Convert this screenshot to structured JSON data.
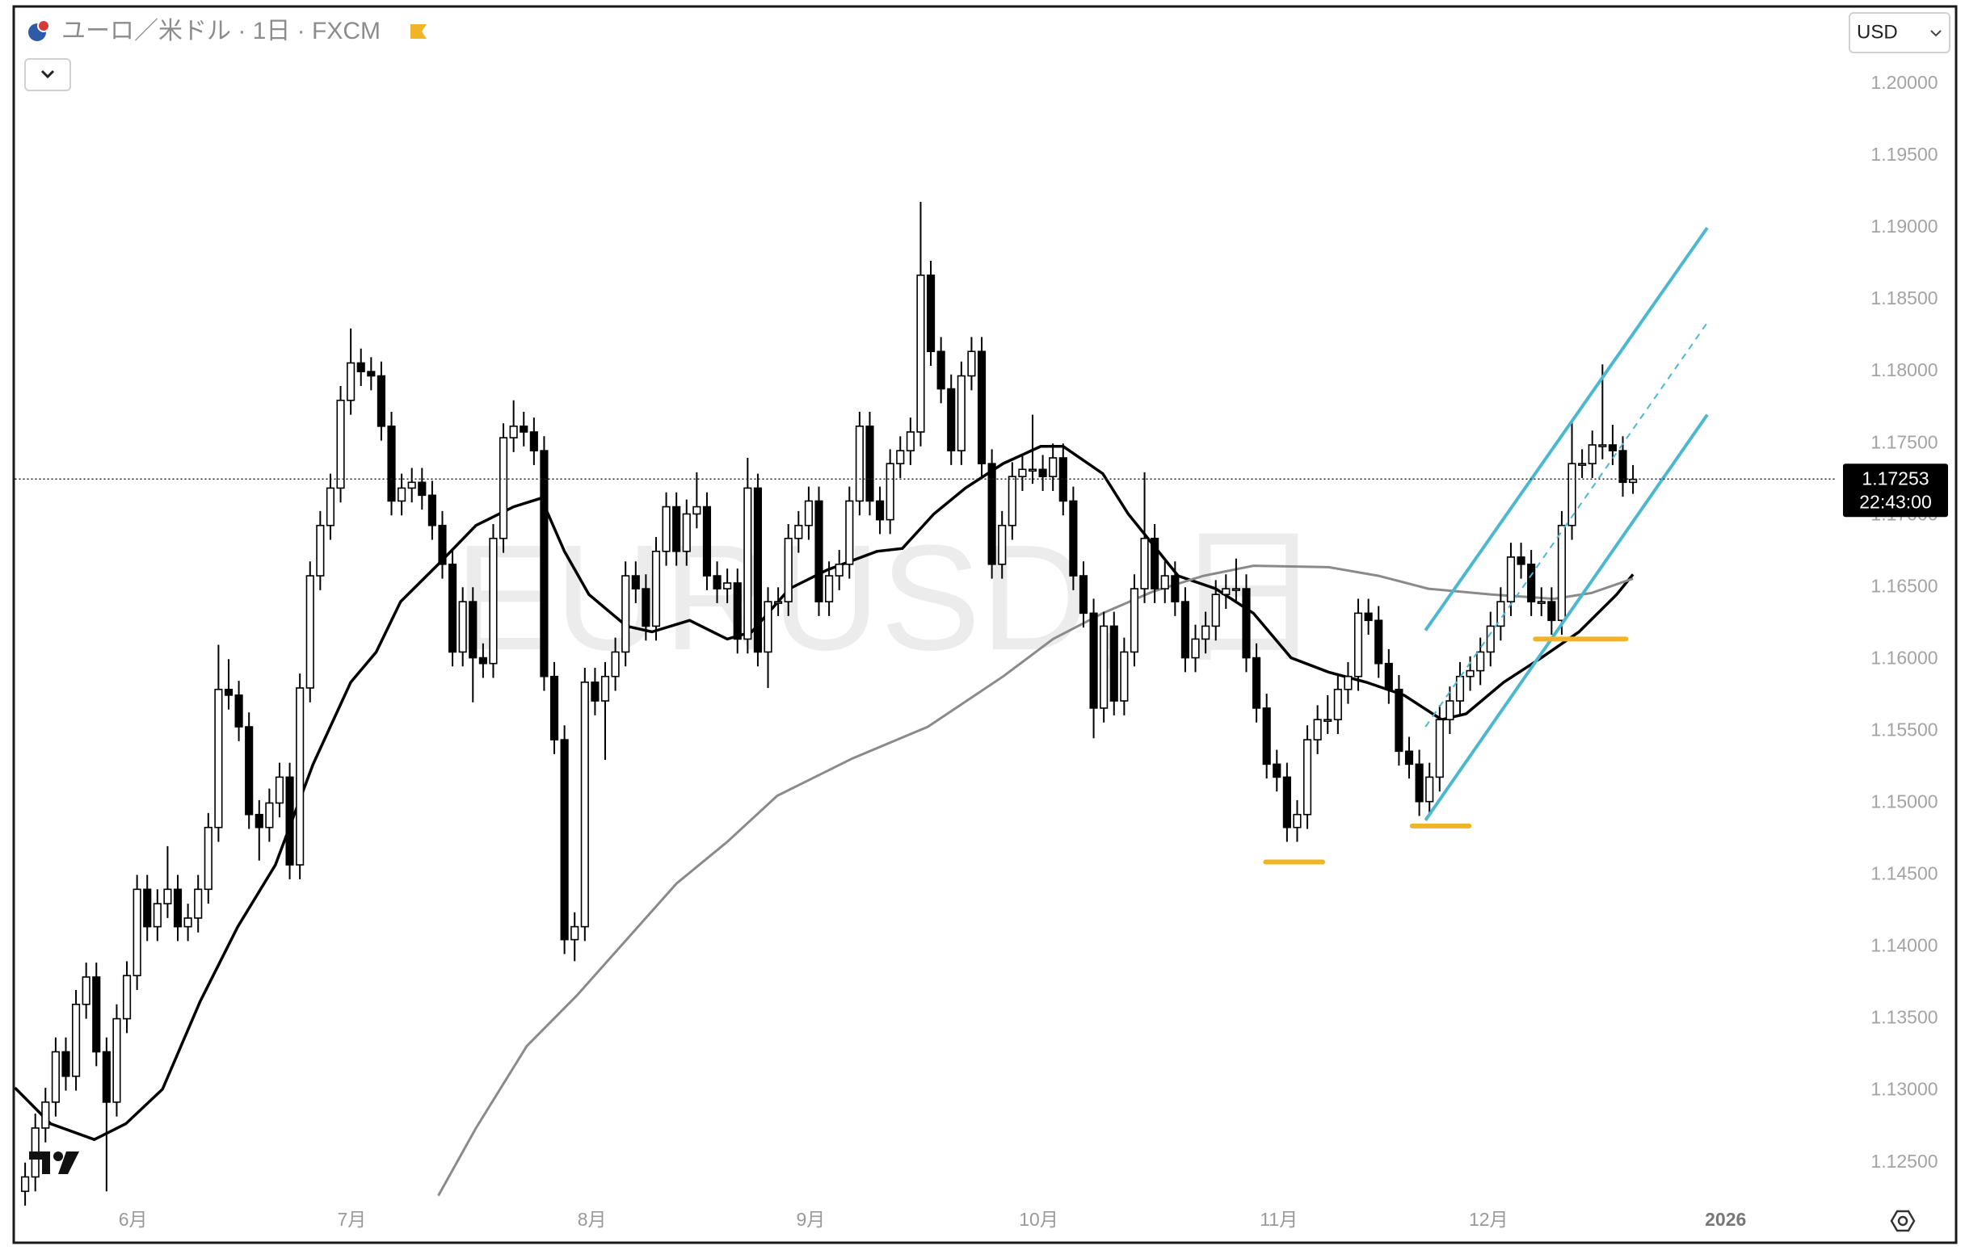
{
  "chart_data": {
    "type": "candlestick",
    "title": "ユーロ／米ドル · 1日 · FXCM",
    "watermark": "EURUSD, 日",
    "currency": "USD",
    "xlim": [
      -1,
      178
    ],
    "xticks": [
      {
        "value": 10.6,
        "label": "6月"
      },
      {
        "value": 32.1,
        "label": "7月"
      },
      {
        "value": 55.7,
        "label": "8月"
      },
      {
        "value": 77.2,
        "label": "9月"
      },
      {
        "value": 99.6,
        "label": "10月"
      },
      {
        "value": 123.2,
        "label": "11月"
      },
      {
        "value": 143.8,
        "label": "12月"
      },
      {
        "value": 167.1,
        "label": "2026"
      }
    ],
    "ylim": [
      1.1224,
      1.2054
    ],
    "yticks": [
      {
        "value": 1.125,
        "label": "1.12500"
      },
      {
        "value": 1.13,
        "label": "1.13000"
      },
      {
        "value": 1.135,
        "label": "1.13500"
      },
      {
        "value": 1.14,
        "label": "1.14000"
      },
      {
        "value": 1.145,
        "label": "1.14500"
      },
      {
        "value": 1.15,
        "label": "1.15000"
      },
      {
        "value": 1.155,
        "label": "1.15500"
      },
      {
        "value": 1.16,
        "label": "1.16000"
      },
      {
        "value": 1.165,
        "label": "1.16500"
      },
      {
        "value": 1.17,
        "label": "1.17000"
      },
      {
        "value": 1.175,
        "label": "1.17500"
      },
      {
        "value": 1.18,
        "label": "1.18000"
      },
      {
        "value": 1.185,
        "label": "1.18500"
      },
      {
        "value": 1.19,
        "label": "1.19000"
      },
      {
        "value": 1.195,
        "label": "1.19500"
      },
      {
        "value": 1.2,
        "label": "1.20000"
      }
    ],
    "up_color": "#ffffff",
    "down_color": "#000000",
    "values": [
      [
        1.123,
        1.125,
        1.122,
        1.124
      ],
      [
        1.124,
        1.1284,
        1.123,
        1.1274
      ],
      [
        1.1274,
        1.1302,
        1.1264,
        1.1292
      ],
      [
        1.1292,
        1.1337,
        1.1282,
        1.1327
      ],
      [
        1.1327,
        1.1337,
        1.13,
        1.131
      ],
      [
        1.131,
        1.137,
        1.13,
        1.136
      ],
      [
        1.136,
        1.1389,
        1.135,
        1.1379
      ],
      [
        1.1379,
        1.1389,
        1.1317,
        1.1327
      ],
      [
        1.1327,
        1.1337,
        1.123,
        1.1292
      ],
      [
        1.1292,
        1.136,
        1.1282,
        1.135
      ],
      [
        1.135,
        1.139,
        1.134,
        1.138
      ],
      [
        1.138,
        1.145,
        1.137,
        1.144
      ],
      [
        1.144,
        1.145,
        1.1404,
        1.1414
      ],
      [
        1.1414,
        1.144,
        1.1404,
        1.143
      ],
      [
        1.143,
        1.147,
        1.142,
        1.144
      ],
      [
        1.144,
        1.145,
        1.1404,
        1.1414
      ],
      [
        1.1414,
        1.143,
        1.1404,
        1.142
      ],
      [
        1.142,
        1.145,
        1.141,
        1.144
      ],
      [
        1.144,
        1.1493,
        1.143,
        1.1483
      ],
      [
        1.1483,
        1.161,
        1.1473,
        1.1579
      ],
      [
        1.1579,
        1.16,
        1.1565,
        1.1575
      ],
      [
        1.1575,
        1.1585,
        1.1543,
        1.1553
      ],
      [
        1.1553,
        1.1563,
        1.1482,
        1.1492
      ],
      [
        1.1492,
        1.1502,
        1.146,
        1.1483
      ],
      [
        1.1483,
        1.151,
        1.1473,
        1.15
      ],
      [
        1.15,
        1.1528,
        1.149,
        1.1518
      ],
      [
        1.1518,
        1.1528,
        1.1447,
        1.1457
      ],
      [
        1.1457,
        1.159,
        1.1447,
        1.158
      ],
      [
        1.158,
        1.1668,
        1.157,
        1.1658
      ],
      [
        1.1658,
        1.1703,
        1.1648,
        1.1693
      ],
      [
        1.1693,
        1.1729,
        1.1683,
        1.1719
      ],
      [
        1.1719,
        1.179,
        1.1709,
        1.178
      ],
      [
        1.178,
        1.183,
        1.177,
        1.1806
      ],
      [
        1.1806,
        1.1816,
        1.179,
        1.18
      ],
      [
        1.18,
        1.181,
        1.1787,
        1.1797
      ],
      [
        1.1797,
        1.1807,
        1.1752,
        1.1762
      ],
      [
        1.1762,
        1.1772,
        1.17,
        1.171
      ],
      [
        1.171,
        1.1729,
        1.17,
        1.1719
      ],
      [
        1.1719,
        1.1733,
        1.1709,
        1.1723
      ],
      [
        1.1723,
        1.1733,
        1.1704,
        1.1714
      ],
      [
        1.1714,
        1.1724,
        1.1683,
        1.1693
      ],
      [
        1.1693,
        1.1703,
        1.1656,
        1.1666
      ],
      [
        1.1666,
        1.1676,
        1.1595,
        1.1605
      ],
      [
        1.1605,
        1.165,
        1.1595,
        1.164
      ],
      [
        1.164,
        1.165,
        1.157,
        1.1601
      ],
      [
        1.1601,
        1.1611,
        1.1587,
        1.1597
      ],
      [
        1.1597,
        1.1694,
        1.1587,
        1.1684
      ],
      [
        1.1684,
        1.1764,
        1.1674,
        1.1754
      ],
      [
        1.1754,
        1.178,
        1.1744,
        1.1762
      ],
      [
        1.1762,
        1.1772,
        1.1748,
        1.1758
      ],
      [
        1.1758,
        1.1768,
        1.1735,
        1.1745
      ],
      [
        1.1745,
        1.1755,
        1.1578,
        1.1588
      ],
      [
        1.1588,
        1.1598,
        1.1534,
        1.1544
      ],
      [
        1.1544,
        1.1554,
        1.1395,
        1.1405
      ],
      [
        1.1405,
        1.1424,
        1.139,
        1.1414
      ],
      [
        1.1414,
        1.1594,
        1.1404,
        1.1584
      ],
      [
        1.1584,
        1.1594,
        1.1561,
        1.1571
      ],
      [
        1.1571,
        1.1598,
        1.153,
        1.1588
      ],
      [
        1.1588,
        1.1615,
        1.1578,
        1.1605
      ],
      [
        1.1605,
        1.1668,
        1.1595,
        1.1658
      ],
      [
        1.1658,
        1.1668,
        1.1639,
        1.1649
      ],
      [
        1.1649,
        1.1659,
        1.1613,
        1.1623
      ],
      [
        1.1623,
        1.1685,
        1.1613,
        1.1675
      ],
      [
        1.1675,
        1.1716,
        1.1665,
        1.1706
      ],
      [
        1.1706,
        1.1716,
        1.1665,
        1.1675
      ],
      [
        1.1675,
        1.1711,
        1.1665,
        1.1701
      ],
      [
        1.1701,
        1.173,
        1.1691,
        1.1706
      ],
      [
        1.1706,
        1.1716,
        1.1648,
        1.1658
      ],
      [
        1.1658,
        1.1668,
        1.1639,
        1.1649
      ],
      [
        1.1649,
        1.1663,
        1.1639,
        1.1653
      ],
      [
        1.1653,
        1.1663,
        1.1604,
        1.1614
      ],
      [
        1.1614,
        1.174,
        1.1604,
        1.1719
      ],
      [
        1.1719,
        1.1729,
        1.1595,
        1.1605
      ],
      [
        1.1605,
        1.165,
        1.158,
        1.164
      ],
      [
        1.164,
        1.165,
        1.163,
        1.164
      ],
      [
        1.164,
        1.1694,
        1.163,
        1.1684
      ],
      [
        1.1684,
        1.1703,
        1.1674,
        1.1693
      ],
      [
        1.1693,
        1.172,
        1.1683,
        1.171
      ],
      [
        1.171,
        1.172,
        1.163,
        1.164
      ],
      [
        1.164,
        1.1668,
        1.163,
        1.1658
      ],
      [
        1.1658,
        1.1676,
        1.1648,
        1.1666
      ],
      [
        1.1666,
        1.172,
        1.1656,
        1.171
      ],
      [
        1.171,
        1.1772,
        1.17,
        1.1762
      ],
      [
        1.1762,
        1.1772,
        1.17,
        1.171
      ],
      [
        1.171,
        1.172,
        1.1687,
        1.1697
      ],
      [
        1.1697,
        1.1746,
        1.1687,
        1.1736
      ],
      [
        1.1736,
        1.1755,
        1.1726,
        1.1745
      ],
      [
        1.1745,
        1.1768,
        1.1735,
        1.1758
      ],
      [
        1.1758,
        1.1918,
        1.1748,
        1.1867
      ],
      [
        1.1867,
        1.1877,
        1.1804,
        1.1814
      ],
      [
        1.1814,
        1.1824,
        1.1778,
        1.1788
      ],
      [
        1.1788,
        1.1798,
        1.1735,
        1.1745
      ],
      [
        1.1745,
        1.1807,
        1.1735,
        1.1797
      ],
      [
        1.1797,
        1.1824,
        1.1787,
        1.1814
      ],
      [
        1.1814,
        1.1824,
        1.1726,
        1.1736
      ],
      [
        1.1736,
        1.1746,
        1.1656,
        1.1666
      ],
      [
        1.1666,
        1.1703,
        1.1656,
        1.1693
      ],
      [
        1.1693,
        1.1737,
        1.1683,
        1.1727
      ],
      [
        1.1727,
        1.1742,
        1.1717,
        1.1732
      ],
      [
        1.1732,
        1.177,
        1.1722,
        1.1732
      ],
      [
        1.1732,
        1.1742,
        1.1717,
        1.1727
      ],
      [
        1.1727,
        1.175,
        1.1717,
        1.174
      ],
      [
        1.174,
        1.175,
        1.17,
        1.171
      ],
      [
        1.171,
        1.172,
        1.1648,
        1.1658
      ],
      [
        1.1658,
        1.1668,
        1.1622,
        1.1632
      ],
      [
        1.1632,
        1.1642,
        1.1545,
        1.1566
      ],
      [
        1.1566,
        1.1633,
        1.1556,
        1.1623
      ],
      [
        1.1623,
        1.1633,
        1.1561,
        1.1571
      ],
      [
        1.1571,
        1.1615,
        1.1561,
        1.1605
      ],
      [
        1.1605,
        1.1659,
        1.1595,
        1.1649
      ],
      [
        1.1649,
        1.173,
        1.1639,
        1.1684
      ],
      [
        1.1684,
        1.1694,
        1.1639,
        1.1649
      ],
      [
        1.1649,
        1.1668,
        1.1639,
        1.1658
      ],
      [
        1.1658,
        1.1668,
        1.163,
        1.164
      ],
      [
        1.164,
        1.165,
        1.1591,
        1.1601
      ],
      [
        1.1601,
        1.1624,
        1.1591,
        1.1614
      ],
      [
        1.1614,
        1.1633,
        1.1604,
        1.1623
      ],
      [
        1.1623,
        1.1655,
        1.1613,
        1.1645
      ],
      [
        1.1645,
        1.1659,
        1.1635,
        1.1649
      ],
      [
        1.1649,
        1.167,
        1.1639,
        1.1649
      ],
      [
        1.1649,
        1.1659,
        1.1591,
        1.1601
      ],
      [
        1.1601,
        1.1611,
        1.1556,
        1.1566
      ],
      [
        1.1566,
        1.1576,
        1.1517,
        1.1527
      ],
      [
        1.1527,
        1.1537,
        1.1508,
        1.1518
      ],
      [
        1.1518,
        1.1528,
        1.1473,
        1.1483
      ],
      [
        1.1483,
        1.1502,
        1.1473,
        1.1492
      ],
      [
        1.1492,
        1.1554,
        1.1482,
        1.1544
      ],
      [
        1.1544,
        1.1568,
        1.1534,
        1.1558
      ],
      [
        1.1558,
        1.1575,
        1.1548,
        1.1558
      ],
      [
        1.1558,
        1.1589,
        1.1548,
        1.1579
      ],
      [
        1.1579,
        1.1598,
        1.1569,
        1.1588
      ],
      [
        1.1588,
        1.1642,
        1.1578,
        1.1632
      ],
      [
        1.1632,
        1.1642,
        1.1617,
        1.1627
      ],
      [
        1.1627,
        1.1637,
        1.1587,
        1.1597
      ],
      [
        1.1597,
        1.1607,
        1.1569,
        1.1579
      ],
      [
        1.1579,
        1.1589,
        1.1526,
        1.1536
      ],
      [
        1.1536,
        1.1546,
        1.1517,
        1.1527
      ],
      [
        1.1527,
        1.1537,
        1.1491,
        1.1501
      ],
      [
        1.1501,
        1.1528,
        1.1491,
        1.1518
      ],
      [
        1.1518,
        1.1568,
        1.1508,
        1.1558
      ],
      [
        1.1558,
        1.1581,
        1.1548,
        1.1571
      ],
      [
        1.1571,
        1.1598,
        1.1561,
        1.1588
      ],
      [
        1.1588,
        1.1602,
        1.1578,
        1.1592
      ],
      [
        1.1592,
        1.1615,
        1.1582,
        1.1605
      ],
      [
        1.1605,
        1.1633,
        1.1595,
        1.1623
      ],
      [
        1.1623,
        1.165,
        1.1613,
        1.164
      ],
      [
        1.164,
        1.1681,
        1.163,
        1.1671
      ],
      [
        1.1671,
        1.1681,
        1.1656,
        1.1666
      ],
      [
        1.1666,
        1.1676,
        1.163,
        1.164
      ],
      [
        1.164,
        1.165,
        1.163,
        1.164
      ],
      [
        1.164,
        1.165,
        1.1617,
        1.1627
      ],
      [
        1.1627,
        1.1703,
        1.1617,
        1.1693
      ],
      [
        1.1693,
        1.1765,
        1.1683,
        1.1736
      ],
      [
        1.1736,
        1.1746,
        1.1726,
        1.1736
      ],
      [
        1.1736,
        1.1759,
        1.1726,
        1.1749
      ],
      [
        1.1749,
        1.1805,
        1.1739,
        1.1749
      ],
      [
        1.1749,
        1.1763,
        1.1735,
        1.1745
      ],
      [
        1.1745,
        1.1755,
        1.1713,
        1.1723
      ],
      [
        1.1723,
        1.1735,
        1.1715,
        1.1725
      ]
    ],
    "moving_averages": [
      {
        "color": "#000000",
        "x": [
          -1.0,
          2.5,
          6.8,
          9.9,
          13.5,
          17.2,
          20.9,
          24.6,
          28.3,
          32.0,
          34.5,
          36.9,
          40.6,
          44.3,
          48.0,
          50.7,
          53.0,
          55.4,
          59.1,
          61.6,
          65.3,
          69.0,
          71.4,
          75.1,
          78.8,
          83.7,
          86.2,
          89.3,
          92.4,
          96.1,
          99.8,
          102.0,
          105.9,
          108.4,
          113.3,
          117.0,
          120.7,
          124.4,
          128.1,
          131.8,
          135.5,
          139.2,
          141.6,
          145.3,
          149.0,
          152.7,
          156.4,
          158.0
        ],
        "values": [
          1.1302,
          1.1277,
          1.1266,
          1.1277,
          1.1301,
          1.1362,
          1.1414,
          1.1457,
          1.1527,
          1.1584,
          1.1605,
          1.164,
          1.1666,
          1.1693,
          1.1706,
          1.1712,
          1.1675,
          1.1645,
          1.1623,
          1.1619,
          1.1627,
          1.1614,
          1.1619,
          1.1649,
          1.1662,
          1.1675,
          1.1677,
          1.1701,
          1.1719,
          1.1736,
          1.1748,
          1.1748,
          1.1729,
          1.1701,
          1.1658,
          1.1649,
          1.1632,
          1.1601,
          1.1591,
          1.1584,
          1.1575,
          1.1558,
          1.1562,
          1.1584,
          1.1601,
          1.1619,
          1.1645,
          1.1659
        ]
      },
      {
        "color": "#8a8a8a",
        "x": [
          40.6,
          44.3,
          49.3,
          54.2,
          59.1,
          64.0,
          69.0,
          73.9,
          81.3,
          88.7,
          96.1,
          101.0,
          105.9,
          110.8,
          115.8,
          120.7,
          128.1,
          133.0,
          137.9,
          144.1,
          150.2,
          153.9,
          158.0
        ],
        "values": [
          1.1227,
          1.1274,
          1.1331,
          1.1366,
          1.1405,
          1.1444,
          1.1473,
          1.1505,
          1.1531,
          1.1553,
          1.1588,
          1.1614,
          1.1632,
          1.1647,
          1.1658,
          1.1665,
          1.1664,
          1.1658,
          1.1649,
          1.1645,
          1.1642,
          1.1646,
          1.1656
        ]
      }
    ],
    "channel_lines": [
      {
        "color": "#4bb8d0",
        "dashed": false,
        "x": [
          137.6,
          165.3
        ],
        "values": [
          1.162,
          1.19
        ]
      },
      {
        "color": "#4bb8d0",
        "dashed": true,
        "x": [
          137.6,
          165.3
        ],
        "values": [
          1.1553,
          1.1834
        ]
      },
      {
        "color": "#4bb8d0",
        "dashed": false,
        "x": [
          137.6,
          165.3
        ],
        "values": [
          1.1488,
          1.177
        ]
      }
    ],
    "support_lines": [
      {
        "color": "#f0b429",
        "x": [
          121.9,
          127.5
        ],
        "values": [
          1.1459,
          1.1459
        ]
      },
      {
        "color": "#f0b429",
        "x": [
          136.3,
          141.9
        ],
        "values": [
          1.1484,
          1.1484
        ]
      },
      {
        "color": "#f0b429",
        "x": [
          148.4,
          157.3
        ],
        "values": [
          1.1614,
          1.1614
        ]
      }
    ],
    "last_price": 1.17253,
    "countdown": "22:43:00"
  }
}
